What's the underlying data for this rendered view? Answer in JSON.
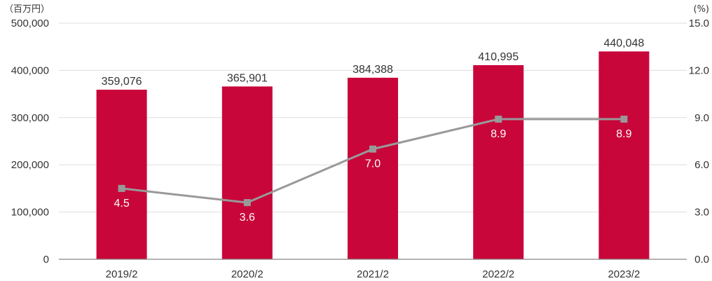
{
  "chart_data": {
    "type": "bar",
    "categories": [
      "2019/2",
      "2020/2",
      "2021/2",
      "2022/2",
      "2023/2"
    ],
    "left_axis_unit": "（百万円）",
    "right_axis_unit": "(%)",
    "left_ticks": [
      "0",
      "100,000",
      "200,000",
      "300,000",
      "400,000",
      "500,000"
    ],
    "right_ticks": [
      "0.0",
      "3.0",
      "6.0",
      "9.0",
      "12.0",
      "15.0"
    ],
    "ylim": [
      0,
      500000
    ],
    "y2lim": [
      0,
      15
    ],
    "series": [
      {
        "type": "bar",
        "axis": "left",
        "values": [
          359076,
          365901,
          384388,
          410995,
          440048
        ],
        "labels": [
          "359,076",
          "365,901",
          "384,388",
          "410,995",
          "440,048"
        ],
        "color": "#c8063a"
      },
      {
        "type": "line",
        "axis": "right",
        "values": [
          4.5,
          3.6,
          7.0,
          8.9,
          8.9
        ],
        "labels": [
          "4.5",
          "3.6",
          "7.0",
          "8.9",
          "8.9"
        ],
        "color": "#999999"
      }
    ],
    "grid": true,
    "legend": "none"
  }
}
